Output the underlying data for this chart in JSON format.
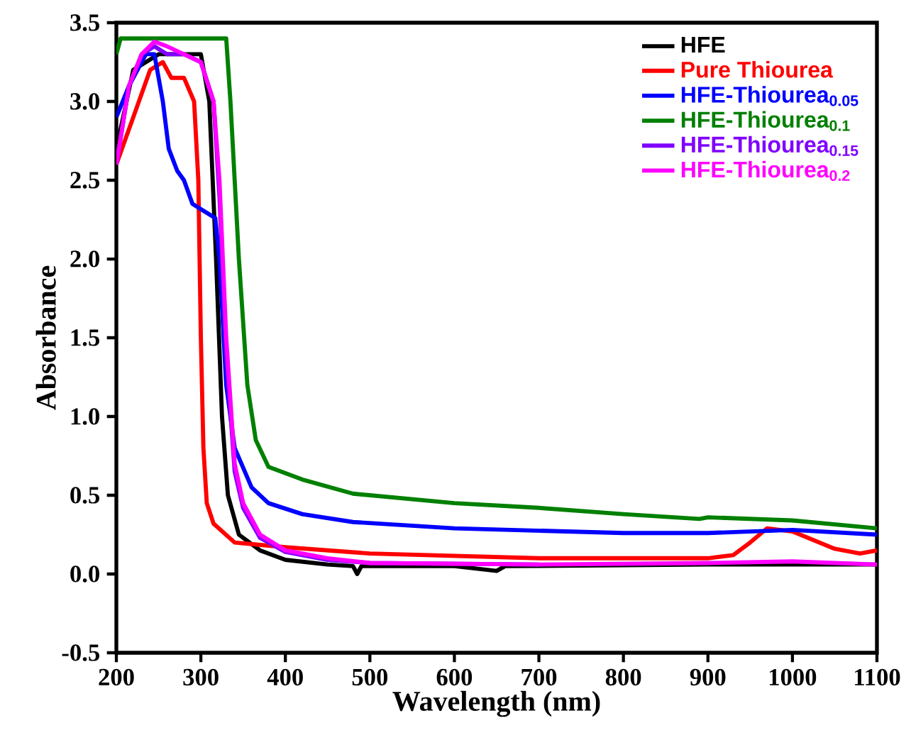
{
  "chart_data": {
    "type": "line",
    "xlabel": "Wavelength (nm)",
    "ylabel": "Absorbance",
    "xlim": [
      200,
      1100
    ],
    "xticks": [
      200,
      300,
      400,
      500,
      600,
      700,
      800,
      900,
      1000,
      1100
    ],
    "ylim": [
      -0.5,
      3.5
    ],
    "yticks": [
      {
        "value": -0.5,
        "label": "-0.5"
      },
      {
        "value": 0,
        "label": "0.0"
      },
      {
        "value": 0.5,
        "label": "0.5"
      },
      {
        "value": 1,
        "label": "1.0"
      },
      {
        "value": 1.5,
        "label": "1.5"
      },
      {
        "value": 2,
        "label": "2.0"
      },
      {
        "value": 2.5,
        "label": "2.5"
      },
      {
        "value": 3,
        "label": "3.0"
      },
      {
        "value": 3.5,
        "label": "3.5"
      }
    ],
    "legend": "top right",
    "line_style": "solid",
    "series": [
      {
        "name": "HFE",
        "color": "#000000",
        "x": [
          200,
          220,
          250,
          280,
          300,
          310,
          318,
          325,
          332,
          345,
          370,
          400,
          450,
          480,
          485,
          490,
          600,
          650,
          660,
          900,
          1100
        ],
        "values": [
          2.7,
          3.2,
          3.3,
          3.3,
          3.3,
          3.0,
          2.0,
          1.0,
          0.5,
          0.25,
          0.15,
          0.09,
          0.06,
          0.05,
          0.0,
          0.05,
          0.05,
          0.02,
          0.05,
          0.06,
          0.06
        ]
      },
      {
        "name": "Pure Thiourea",
        "color": "#ff0000",
        "x": [
          200,
          220,
          240,
          255,
          265,
          280,
          292,
          297,
          300,
          303,
          307,
          315,
          340,
          400,
          500,
          700,
          900,
          930,
          950,
          970,
          1000,
          1050,
          1080,
          1100
        ],
        "values": [
          2.6,
          2.9,
          3.2,
          3.25,
          3.15,
          3.15,
          3.0,
          2.5,
          1.5,
          0.8,
          0.45,
          0.32,
          0.2,
          0.17,
          0.13,
          0.1,
          0.1,
          0.12,
          0.2,
          0.29,
          0.27,
          0.16,
          0.13,
          0.15
        ]
      },
      {
        "name": "HFE-Thiourea$_{0.05}$",
        "color": "#0000ff",
        "x": [
          200,
          215,
          235,
          245,
          255,
          262,
          272,
          280,
          290,
          305,
          317,
          322,
          330,
          340,
          360,
          380,
          420,
          480,
          600,
          800,
          900,
          1000,
          1100
        ],
        "values": [
          2.9,
          3.1,
          3.3,
          3.3,
          3.0,
          2.7,
          2.56,
          2.5,
          2.35,
          2.3,
          2.26,
          2.0,
          1.2,
          0.8,
          0.55,
          0.45,
          0.38,
          0.33,
          0.29,
          0.26,
          0.26,
          0.28,
          0.25
        ]
      },
      {
        "name": "HFE-Thiourea$_{0.1}$",
        "color": "#008000",
        "x": [
          200,
          205,
          330,
          335,
          345,
          355,
          365,
          380,
          420,
          480,
          600,
          700,
          800,
          890,
          900,
          1000,
          1100
        ],
        "values": [
          3.3,
          3.4,
          3.4,
          3.0,
          2.0,
          1.2,
          0.85,
          0.68,
          0.6,
          0.51,
          0.45,
          0.42,
          0.38,
          0.35,
          0.36,
          0.34,
          0.29
        ]
      },
      {
        "name": "HFE-Thiourea$_{0.15}$",
        "color": "#8000ff",
        "x": [
          200,
          215,
          230,
          245,
          260,
          280,
          300,
          315,
          322,
          330,
          340,
          350,
          370,
          400,
          450,
          500,
          700
        ],
        "values": [
          2.6,
          3.1,
          3.3,
          3.35,
          3.3,
          3.3,
          3.25,
          3.0,
          2.4,
          1.4,
          0.65,
          0.42,
          0.23,
          0.14,
          0.09,
          0.07,
          0.06
        ]
      },
      {
        "name": "HFE-Thiourea$_{0.2}$",
        "color": "#ff00ff",
        "x": [
          200,
          215,
          230,
          245,
          260,
          280,
          300,
          315,
          322,
          330,
          340,
          350,
          370,
          400,
          450,
          500,
          700,
          900,
          1000,
          1100
        ],
        "values": [
          2.6,
          3.1,
          3.3,
          3.38,
          3.35,
          3.3,
          3.25,
          3.0,
          2.5,
          1.5,
          0.7,
          0.45,
          0.25,
          0.15,
          0.1,
          0.07,
          0.06,
          0.07,
          0.08,
          0.06
        ]
      }
    ]
  }
}
